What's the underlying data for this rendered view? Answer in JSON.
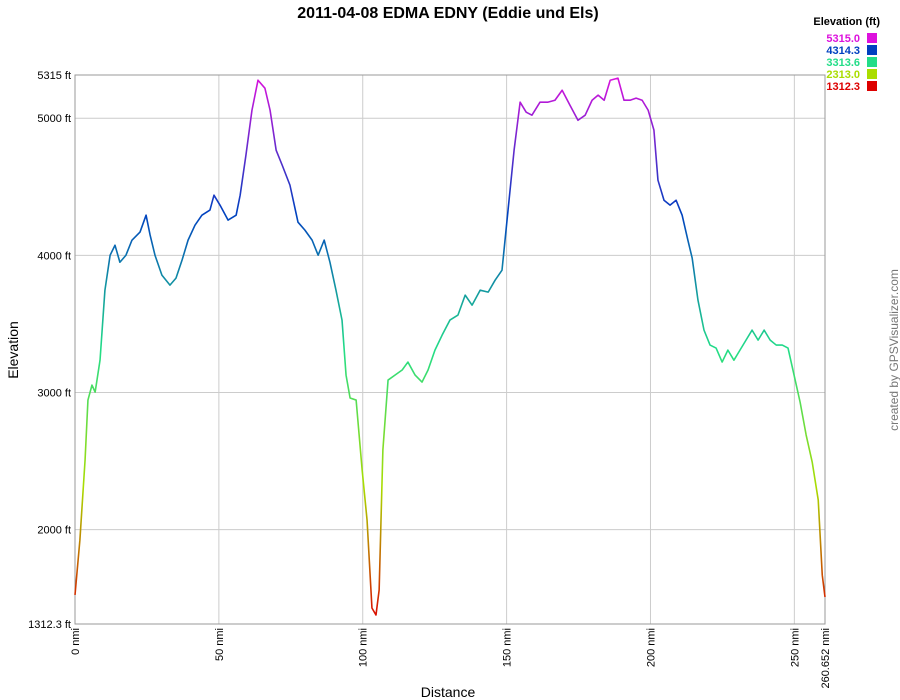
{
  "chart_data": {
    "type": "line",
    "title": "2011-04-08 EDMA EDNY (Eddie und Els)",
    "x_label": "Distance",
    "y_label": "Elevation",
    "credit": "created by GPSVisualizer.com",
    "legend_title": "Elevation (ft)",
    "color_scale": [
      {
        "value": 5315.0,
        "label": "5315.0",
        "color": "#dd11dd"
      },
      {
        "value": 4314.3,
        "label": "4314.3",
        "color": "#0040c0"
      },
      {
        "value": 3313.6,
        "label": "3313.6",
        "color": "#22dd88"
      },
      {
        "value": 2313.0,
        "label": "2313.0",
        "color": "#aadd00"
      },
      {
        "value": 1312.3,
        "label": "1312.3",
        "color": "#dd0000"
      }
    ],
    "grid": true,
    "xlim": [
      0,
      260.652
    ],
    "ylim": [
      1312.3,
      5315
    ],
    "xticks": [
      {
        "value": 0,
        "label": "0 nmi"
      },
      {
        "value": 50,
        "label": "50 nmi"
      },
      {
        "value": 100,
        "label": "100 nmi"
      },
      {
        "value": 150,
        "label": "150 nmi"
      },
      {
        "value": 200,
        "label": "200 nmi"
      },
      {
        "value": 250,
        "label": "250 nmi"
      },
      {
        "value": 260.652,
        "label": "260.652 nmi"
      }
    ],
    "yticks": [
      {
        "value": 1312.3,
        "label": "1312.3 ft"
      },
      {
        "value": 2000,
        "label": "2000 ft"
      },
      {
        "value": 3000,
        "label": "3000 ft"
      },
      {
        "value": 4000,
        "label": "4000 ft"
      },
      {
        "value": 5000,
        "label": "5000 ft"
      },
      {
        "value": 5315,
        "label": "5315 ft"
      }
    ],
    "x": [
      0,
      1.7,
      3.5,
      4.5,
      5.9,
      7,
      8.7,
      10.4,
      12.2,
      13.9,
      15.6,
      17.7,
      19.8,
      22.6,
      24.7,
      26.1,
      27.8,
      30.2,
      33,
      35.1,
      37.2,
      39.3,
      41.7,
      44.1,
      46.9,
      48.3,
      50.4,
      53.2,
      56,
      57.4,
      59.4,
      61.5,
      63.6,
      66,
      67.8,
      69.9,
      72,
      74.7,
      77.5,
      79.9,
      82.4,
      84.5,
      86.6,
      88.6,
      90.7,
      92.8,
      94.2,
      95.6,
      97.7,
      99.8,
      101.5,
      103.2,
      104.6,
      105.7,
      107,
      108.8,
      111.2,
      113.7,
      115.7,
      118.2,
      120.6,
      122.7,
      125.1,
      127.6,
      130.3,
      133.1,
      135.6,
      138,
      140.8,
      143.6,
      146,
      148.4,
      150.5,
      152.6,
      154.7,
      156.8,
      158.8,
      161.6,
      164.4,
      166.8,
      169.3,
      172,
      174.8,
      177.3,
      179.7,
      181.8,
      183.9,
      186,
      188.7,
      190.8,
      192.9,
      195,
      197.1,
      199.2,
      201.2,
      202.6,
      204.7,
      206.8,
      208.9,
      211,
      213,
      214.5,
      216.5,
      218.6,
      220.7,
      222.8,
      224.9,
      226.9,
      229,
      231.1,
      233.2,
      235.3,
      237.4,
      239.5,
      241.6,
      243.7,
      245.8,
      247.8,
      249.9,
      252,
      254.1,
      256.2,
      258.3,
      259.7,
      260.652
    ],
    "values": [
      1524,
      1924,
      2508,
      2945,
      3054,
      3003,
      3236,
      3746,
      4001,
      4074,
      3950,
      4001,
      4111,
      4170,
      4293,
      4148,
      4001,
      3856,
      3783,
      3834,
      3965,
      4111,
      4220,
      4293,
      4330,
      4439,
      4366,
      4257,
      4293,
      4439,
      4730,
      5058,
      5277,
      5219,
      5058,
      4767,
      4658,
      4512,
      4242,
      4184,
      4111,
      4001,
      4111,
      3950,
      3746,
      3528,
      3127,
      2960,
      2945,
      2434,
      2070,
      1429,
      1378,
      1560,
      2581,
      3091,
      3127,
      3164,
      3222,
      3127,
      3076,
      3164,
      3309,
      3419,
      3528,
      3565,
      3710,
      3637,
      3746,
      3732,
      3819,
      3892,
      4330,
      4767,
      5117,
      5044,
      5022,
      5117,
      5117,
      5131,
      5204,
      5095,
      4985,
      5022,
      5131,
      5168,
      5131,
      5277,
      5292,
      5131,
      5131,
      5146,
      5131,
      5058,
      4913,
      4548,
      4402,
      4366,
      4402,
      4293,
      4111,
      3979,
      3674,
      3455,
      3346,
      3324,
      3222,
      3309,
      3236,
      3309,
      3382,
      3455,
      3382,
      3455,
      3382,
      3346,
      3346,
      3324,
      3127,
      2930,
      2690,
      2493,
      2216,
      1669,
      1509
    ]
  }
}
